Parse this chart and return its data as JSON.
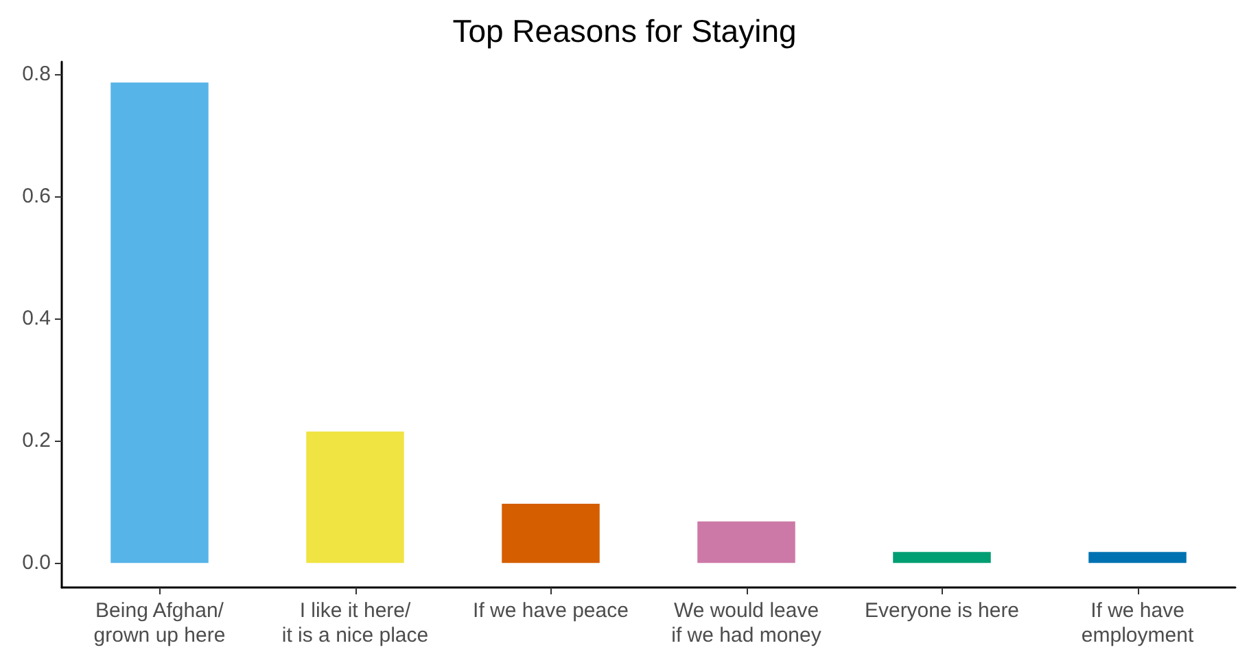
{
  "chart_data": {
    "type": "bar",
    "title": "Top Reasons for Staying",
    "categories": [
      "Being Afghan/\ngrown up here",
      "I like it here/\nit is a nice place",
      "If we have peace",
      "We would leave\nif we had money",
      "Everyone is here",
      "If we have\nemployment"
    ],
    "values": [
      0.786,
      0.215,
      0.097,
      0.068,
      0.018,
      0.018
    ],
    "colors": [
      "#56b4e9",
      "#f0e442",
      "#d55e00",
      "#cc79a7",
      "#009e73",
      "#0072b2"
    ],
    "ylim": [
      -0.04,
      0.82
    ],
    "yticks": [
      {
        "value": 0,
        "label": "0.0"
      },
      {
        "value": 0.2,
        "label": "0.2"
      },
      {
        "value": 0.4,
        "label": "0.4"
      },
      {
        "value": 0.6,
        "label": "0.6"
      },
      {
        "value": 0.8,
        "label": "0.8"
      }
    ],
    "grid": false
  }
}
